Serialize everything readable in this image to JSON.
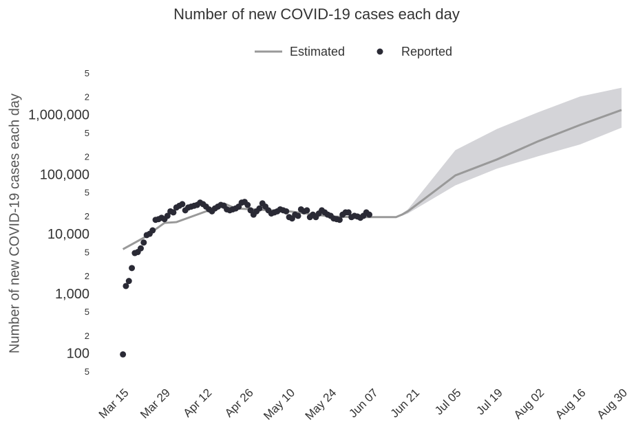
{
  "chart_data": {
    "type": "line",
    "title": "Number of new COVID-19 cases each day",
    "y_label": "Number of new COVID-19 cases each day",
    "log_y": true,
    "grid": false,
    "legend_position": "top",
    "ylim": [
      35,
      7000000
    ],
    "yticks": [
      {
        "value": 50,
        "label": "5"
      },
      100,
      {
        "value": 200,
        "label": "2"
      },
      {
        "value": 500,
        "label": "5"
      },
      {
        "value": 1000,
        "label": "1,000"
      },
      {
        "value": 2000,
        "label": "2"
      },
      {
        "value": 5000,
        "label": "5"
      },
      {
        "value": 10000,
        "label": "10,000"
      },
      {
        "value": 20000,
        "label": "2"
      },
      {
        "value": 50000,
        "label": "5"
      },
      {
        "value": 100000,
        "label": "100,000"
      },
      {
        "value": 200000,
        "label": "2"
      },
      {
        "value": 500000,
        "label": "5"
      },
      {
        "value": 1000000,
        "label": "1,000,000"
      },
      {
        "value": 2000000,
        "label": "2"
      },
      {
        "value": 5000000,
        "label": "5"
      }
    ],
    "xlim": [
      "Mar 13",
      "Aug 30"
    ],
    "xticks": [
      "Mar 15",
      "Mar 29",
      "Apr 12",
      "Apr 26",
      "May 10",
      "May 24",
      "Jun 07",
      "Jun 21",
      "Jul 05",
      "Jul 19",
      "Aug 02",
      "Aug 16",
      "Aug 30"
    ],
    "interval": {
      "color": "#d4d4d8",
      "x": [
        "Jun 15",
        "Jun 17",
        "Jun 19",
        "Jul 05",
        "Jul 19",
        "Aug 02",
        "Aug 16",
        "Aug 30"
      ],
      "lower": [
        20000,
        21000,
        23000,
        68000,
        130000,
        210000,
        330000,
        630000
      ],
      "upper": [
        20000,
        23000,
        27000,
        265000,
        600000,
        1150000,
        2100000,
        2950000
      ]
    },
    "series": [
      {
        "name": "Estimated",
        "mode": "lines",
        "color": "#999999",
        "x": [
          "Mar 15",
          "Mar 22",
          "Mar 29",
          "Apr 02",
          "Apr 12",
          "Apr 18",
          "Apr 22",
          "May 10",
          "May 24",
          "Jun 01",
          "Jun 15",
          "Jun 17",
          "Jun 19",
          "Jul 05",
          "Jul 19",
          "Aug 02",
          "Aug 16",
          "Aug 30"
        ],
        "values": [
          5800,
          9000,
          16000,
          16500,
          25000,
          34000,
          28000,
          25000,
          20500,
          20000,
          20000,
          22000,
          25000,
          100000,
          185000,
          375000,
          700000,
          1250000
        ]
      },
      {
        "name": "Reported",
        "mode": "markers",
        "color": "#2a2a35",
        "x": [
          "Mar 15",
          "Mar 16",
          "Mar 17",
          "Mar 18",
          "Mar 19",
          "Mar 20",
          "Mar 21",
          "Mar 22",
          "Mar 23",
          "Mar 24",
          "Mar 25",
          "Mar 26",
          "Mar 27",
          "Mar 28",
          "Mar 29",
          "Mar 30",
          "Mar 31",
          "Apr 01",
          "Apr 02",
          "Apr 03",
          "Apr 04",
          "Apr 05",
          "Apr 06",
          "Apr 07",
          "Apr 08",
          "Apr 09",
          "Apr 10",
          "Apr 11",
          "Apr 12",
          "Apr 13",
          "Apr 14",
          "Apr 15",
          "Apr 16",
          "Apr 17",
          "Apr 18",
          "Apr 19",
          "Apr 20",
          "Apr 21",
          "Apr 22",
          "Apr 23",
          "Apr 24",
          "Apr 25",
          "Apr 26",
          "Apr 27",
          "Apr 28",
          "Apr 29",
          "Apr 30",
          "May 01",
          "May 02",
          "May 03",
          "May 04",
          "May 05",
          "May 06",
          "May 07",
          "May 08",
          "May 09",
          "May 10",
          "May 11",
          "May 12",
          "May 13",
          "May 14",
          "May 15",
          "May 16",
          "May 17",
          "May 18",
          "May 19",
          "May 20",
          "May 21",
          "May 22",
          "May 23",
          "May 24",
          "May 25",
          "May 26",
          "May 27",
          "May 28",
          "May 29",
          "May 30",
          "May 31",
          "Jun 01",
          "Jun 02",
          "Jun 03",
          "Jun 04",
          "Jun 05",
          "Jun 06"
        ],
        "values": [
          100,
          1400,
          1700,
          2800,
          5000,
          5200,
          6000,
          7500,
          10000,
          10500,
          12000,
          18000,
          18500,
          19500,
          18500,
          21000,
          25000,
          24000,
          29000,
          31000,
          33000,
          26000,
          29000,
          30000,
          31000,
          32000,
          35000,
          33000,
          30000,
          27000,
          25000,
          28000,
          30000,
          32000,
          31000,
          27000,
          26000,
          27000,
          28000,
          30000,
          35000,
          36000,
          32000,
          26000,
          22000,
          25000,
          28000,
          34000,
          30000,
          26000,
          23000,
          24000,
          25000,
          27000,
          26000,
          25000,
          20000,
          19000,
          22000,
          21000,
          27000,
          25000,
          26000,
          20000,
          22000,
          20000,
          23000,
          26000,
          24000,
          22000,
          21000,
          19000,
          18500,
          18000,
          22000,
          24000,
          24000,
          20000,
          21000,
          20500,
          19500,
          21000,
          24000,
          22000
        ]
      }
    ]
  }
}
